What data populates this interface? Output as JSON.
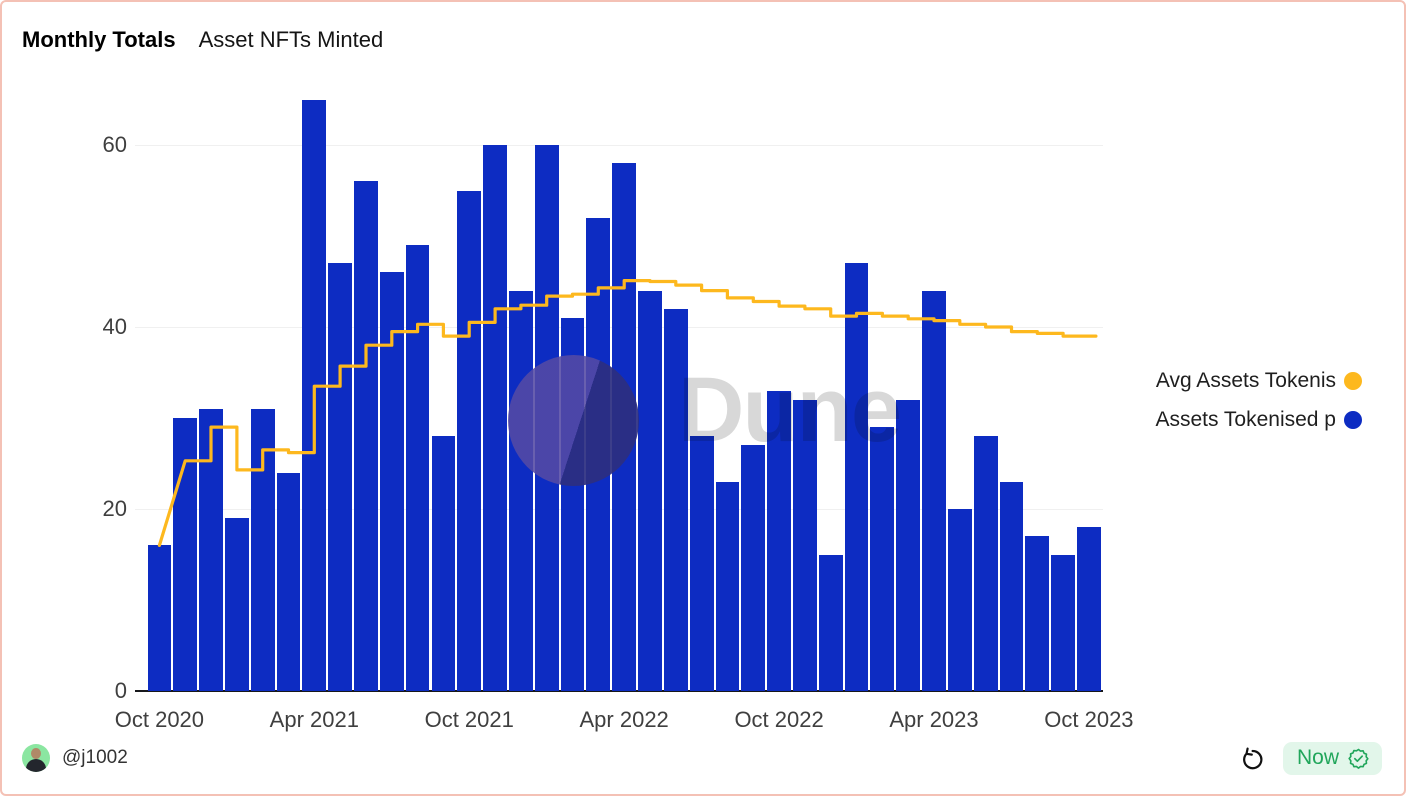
{
  "header": {
    "title": "Monthly Totals",
    "subtitle": "Asset NFTs Minted"
  },
  "legend": {
    "items": [
      {
        "label": "Avg Assets Tokenis",
        "color": "#fdb81e"
      },
      {
        "label": "Assets Tokenised p",
        "color": "#0d2cc2"
      }
    ]
  },
  "watermark": {
    "text": "Dune"
  },
  "footer": {
    "author": "@j1002",
    "refresh_badge": "Now"
  },
  "colors": {
    "bar": "#0d2cc2",
    "line": "#fdb81e",
    "border": "#f4c1b5",
    "grid": "#f0f0f0",
    "badge_green": "#21a65b",
    "badge_bg": "#e2f6ea"
  },
  "chart_data": {
    "type": "bar",
    "title": "Monthly Totals",
    "subtitle": "Asset NFTs Minted",
    "categories": [
      "Oct 2020",
      "Nov 2020",
      "Dec 2020",
      "Jan 2021",
      "Feb 2021",
      "Mar 2021",
      "Apr 2021",
      "May 2021",
      "Jun 2021",
      "Jul 2021",
      "Aug 2021",
      "Sep 2021",
      "Oct 2021",
      "Nov 2021",
      "Dec 2021",
      "Jan 2022",
      "Feb 2022",
      "Mar 2022",
      "Apr 2022",
      "May 2022",
      "Jun 2022",
      "Jul 2022",
      "Aug 2022",
      "Sep 2022",
      "Oct 2022",
      "Nov 2022",
      "Dec 2022",
      "Jan 2023",
      "Feb 2023",
      "Mar 2023",
      "Apr 2023",
      "May 2023",
      "Jun 2023",
      "Jul 2023",
      "Aug 2023",
      "Sep 2023",
      "Oct 2023"
    ],
    "series": [
      {
        "name": "Assets Tokenised p",
        "type": "bar",
        "color": "#0d2cc2",
        "values": [
          16,
          30,
          31,
          19,
          31,
          24,
          65,
          47,
          56,
          46,
          49,
          28,
          55,
          60,
          44,
          60,
          41,
          52,
          58,
          44,
          42,
          28,
          23,
          27,
          33,
          32,
          15,
          47,
          29,
          32,
          44,
          20,
          28,
          23,
          17,
          15,
          18
        ]
      },
      {
        "name": "Avg Assets Tokenis",
        "type": "line",
        "color": "#fdb81e",
        "values": [
          16,
          25.3,
          29,
          24.3,
          26.5,
          26.2,
          33.5,
          35.7,
          38,
          39.5,
          40.3,
          39,
          40.5,
          42,
          42.4,
          43.4,
          43.6,
          44.3,
          45.1,
          45,
          44.6,
          44,
          43.2,
          42.8,
          42.3,
          42,
          41.2,
          41.5,
          41.2,
          40.9,
          40.7,
          40.3,
          40,
          39.5,
          39.3,
          39,
          39
        ]
      }
    ],
    "yticks": [
      0,
      20,
      40,
      60
    ],
    "ylim": [
      0,
      66
    ],
    "xticks": [
      "Oct 2020",
      "Apr 2021",
      "Oct 2021",
      "Apr 2022",
      "Oct 2022",
      "Apr 2023",
      "Oct 2023"
    ],
    "grid": true,
    "legend_position": "right-inside"
  }
}
